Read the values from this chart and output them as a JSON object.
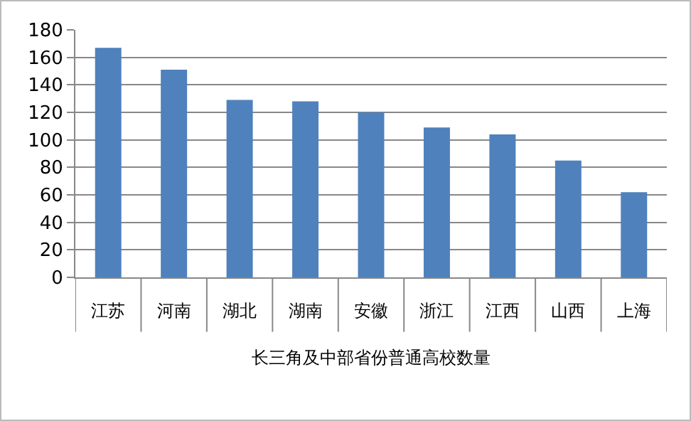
{
  "chart_data": {
    "type": "bar",
    "xlabel": "长三角及中部省份普通高校数量",
    "categories": [
      "江苏",
      "河南",
      "湖北",
      "湖南",
      "安徽",
      "浙江",
      "江西",
      "山西",
      "上海"
    ],
    "values": [
      167,
      151,
      129,
      128,
      120,
      109,
      104,
      85,
      62
    ],
    "color": "#4f81bd",
    "ylim": [
      0,
      180
    ],
    "yticks": [
      0,
      20,
      40,
      60,
      80,
      100,
      120,
      140,
      160,
      180
    ],
    "grid": "y"
  }
}
